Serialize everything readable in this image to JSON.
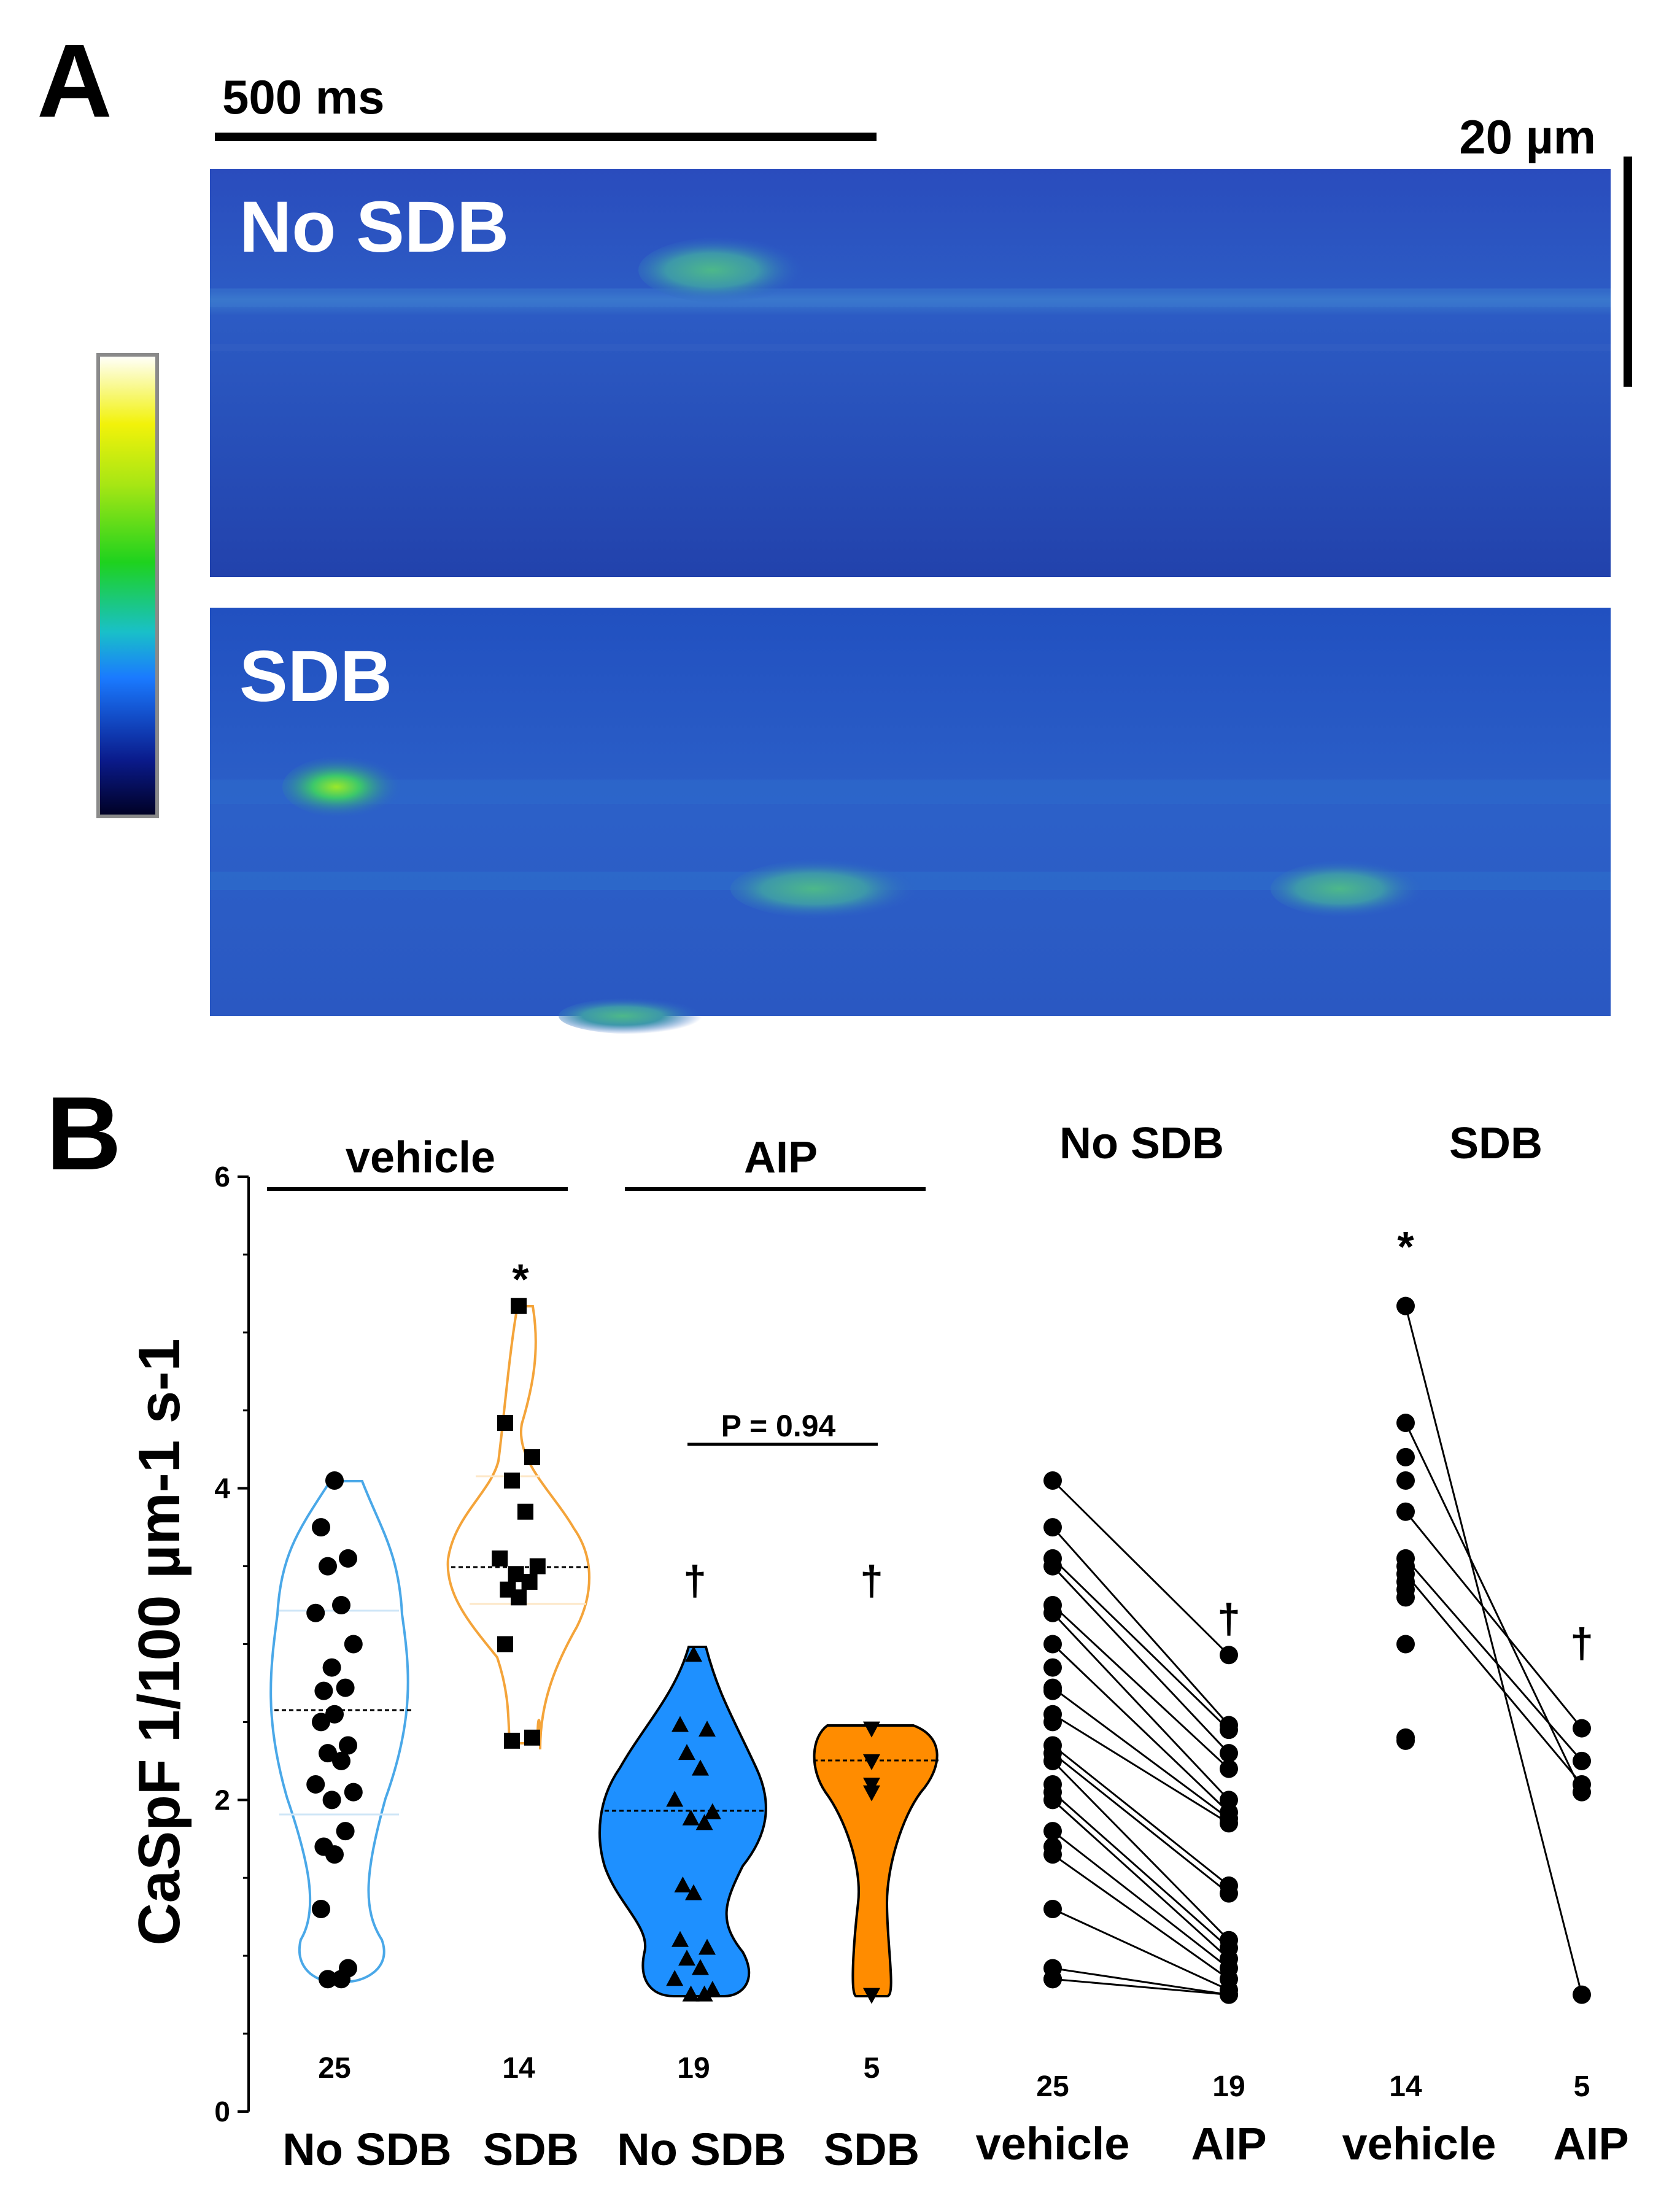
{
  "panel_a": {
    "label": "A",
    "time_scale_label": "500 ms",
    "space_scale_label": "20 µm",
    "top_image_label": "No SDB",
    "bottom_image_label": "SDB"
  },
  "panel_b": {
    "label": "B",
    "header_vehicle": "vehicle",
    "header_aip": "AIP",
    "header_no_sdb": "No SDB",
    "header_sdb": "SDB",
    "p_value": "P = 0.94",
    "star": "*",
    "dagger": "†"
  },
  "colors": {
    "blue": "#1E90FF",
    "orange": "#FF8C00",
    "dark_blue_bg": "#1f3fa6"
  },
  "chart_data": [
    {
      "type": "scatter",
      "subtype": "violin-with-points",
      "ylabel": "CaSpF 1/100 µm-1 s-1",
      "ylim": [
        0,
        6
      ],
      "yticks": [
        "0",
        "2",
        "4",
        "6"
      ],
      "groups": [
        {
          "name": "No SDB",
          "condition": "vehicle",
          "n": "25",
          "marker": "circle",
          "values": [
            4.05,
            3.75,
            3.55,
            3.5,
            3.25,
            3.2,
            3.0,
            2.85,
            2.72,
            2.7,
            2.55,
            2.5,
            2.35,
            2.3,
            2.25,
            2.1,
            2.05,
            2.0,
            1.8,
            1.7,
            1.65,
            1.3,
            0.92,
            0.85,
            0.85
          ]
        },
        {
          "name": "SDB",
          "condition": "vehicle",
          "n": "14",
          "marker": "square",
          "values": [
            5.17,
            4.42,
            4.2,
            4.05,
            3.85,
            3.55,
            3.5,
            3.45,
            3.4,
            3.35,
            3.3,
            3.0,
            2.4,
            2.38
          ]
        },
        {
          "name": "No SDB",
          "condition": "AIP",
          "n": "19",
          "marker": "triangle-up",
          "values": [
            2.93,
            2.48,
            2.45,
            2.3,
            2.2,
            2.0,
            1.92,
            1.88,
            1.85,
            1.45,
            1.4,
            1.1,
            1.05,
            0.98,
            0.92,
            0.85,
            0.78,
            0.75,
            0.75
          ]
        },
        {
          "name": "SDB",
          "condition": "AIP",
          "n": "5",
          "marker": "triangle-down",
          "values": [
            2.46,
            2.25,
            2.1,
            2.05,
            0.75
          ]
        }
      ]
    },
    {
      "type": "line",
      "subtype": "paired",
      "title": "No SDB",
      "categories": [
        "vehicle",
        "AIP"
      ],
      "n": [
        "25",
        "19"
      ],
      "pairs": [
        [
          4.05,
          2.93
        ],
        [
          3.75,
          2.48
        ],
        [
          3.55,
          2.45
        ],
        [
          3.5,
          2.3
        ],
        [
          3.25,
          2.2
        ],
        [
          3.2,
          2.0
        ],
        [
          3.0,
          1.92
        ],
        [
          2.72,
          1.88
        ],
        [
          2.55,
          1.85
        ],
        [
          2.35,
          1.45
        ],
        [
          2.3,
          1.4
        ],
        [
          2.25,
          1.1
        ],
        [
          2.05,
          1.05
        ],
        [
          2.0,
          0.98
        ],
        [
          1.8,
          0.92
        ],
        [
          1.65,
          0.85
        ],
        [
          1.3,
          0.78
        ],
        [
          0.92,
          0.75
        ],
        [
          0.85,
          0.75
        ]
      ],
      "unpaired_left": [
        2.7,
        2.5,
        2.1,
        1.7,
        2.85,
        0.85
      ]
    },
    {
      "type": "line",
      "subtype": "paired",
      "title": "SDB",
      "categories": [
        "vehicle",
        "AIP"
      ],
      "n": [
        "14",
        "5"
      ],
      "pairs": [
        [
          5.17,
          0.75
        ],
        [
          4.42,
          2.05
        ],
        [
          3.85,
          2.46
        ],
        [
          3.55,
          2.25
        ],
        [
          3.45,
          2.1
        ]
      ],
      "unpaired_left": [
        4.2,
        4.05,
        3.5,
        3.4,
        3.35,
        3.3,
        3.0,
        2.4,
        2.38
      ]
    }
  ]
}
